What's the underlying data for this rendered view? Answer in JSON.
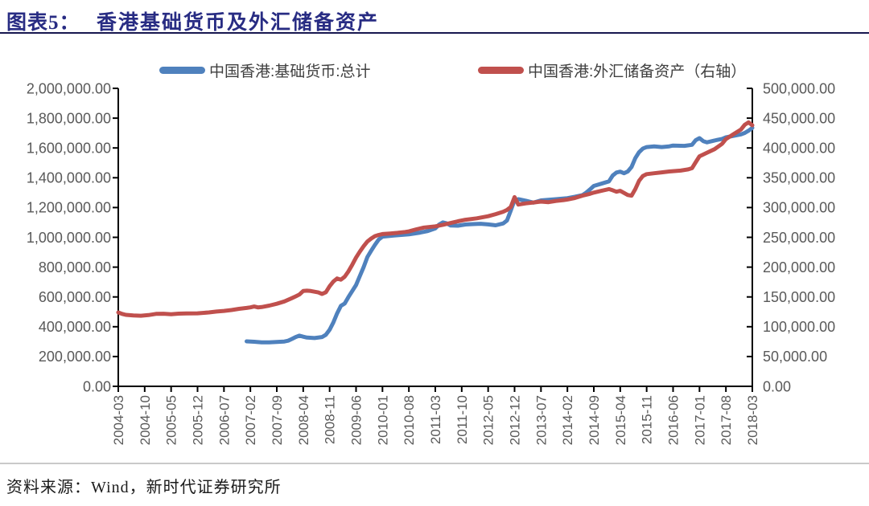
{
  "header": {
    "figure_label": "图表5：",
    "title": "香港基础货币及外汇储备资产"
  },
  "footer": {
    "source": "资料来源：Wind，新时代证券研究所"
  },
  "colors": {
    "title": "#282c83",
    "rule": "#17174f",
    "light_rule": "#c9c9c9",
    "axis": "#000000",
    "tick_label": "#595959",
    "series_blue": "#4F81BD",
    "series_red": "#C0504D"
  },
  "chart_data": {
    "type": "line",
    "title": "图表5： 香港基础货币及外汇储备资产",
    "x_start": "2004-03",
    "x_end": "2018-03",
    "months_total": 168,
    "x_tick_labels": [
      "2004-03",
      "2004-10",
      "2005-05",
      "2005-12",
      "2006-07",
      "2007-02",
      "2007-09",
      "2008-04",
      "2008-11",
      "2009-06",
      "2010-01",
      "2010-08",
      "2011-03",
      "2011-10",
      "2012-05",
      "2012-12",
      "2013-07",
      "2014-02",
      "2014-09",
      "2015-04",
      "2015-11",
      "2016-06",
      "2017-01",
      "2017-08",
      "2018-03"
    ],
    "left_axis": {
      "min": 0,
      "max": 2000000,
      "step": 200000,
      "labels": [
        "2,000,000.00",
        "1,800,000.00",
        "1,600,000.00",
        "1,400,000.00",
        "1,200,000.00",
        "1,000,000.00",
        "800,000.00",
        "600,000.00",
        "400,000.00",
        "200,000.00",
        "0.00"
      ]
    },
    "right_axis": {
      "min": 0,
      "max": 500000,
      "step": 50000,
      "labels": [
        "500,000.00",
        "450,000.00",
        "400,000.00",
        "350,000.00",
        "300,000.00",
        "250,000.00",
        "200,000.00",
        "150,000.00",
        "100,000.00",
        "50,000.00",
        "0.00"
      ]
    },
    "legend_position": "top",
    "grid": false,
    "series": [
      {
        "name": "中国香港:基础货币:总计",
        "axis": "left",
        "color": "#4F81BD",
        "points": [
          [
            34,
            302000
          ],
          [
            36,
            299000
          ],
          [
            38,
            295000
          ],
          [
            40,
            295000
          ],
          [
            42,
            298000
          ],
          [
            44,
            301000
          ],
          [
            45,
            306000
          ],
          [
            46,
            318000
          ],
          [
            47,
            331000
          ],
          [
            48,
            340000
          ],
          [
            49,
            333000
          ],
          [
            50,
            327000
          ],
          [
            52,
            324000
          ],
          [
            54,
            331000
          ],
          [
            55,
            346000
          ],
          [
            56,
            380000
          ],
          [
            57,
            430000
          ],
          [
            58,
            490000
          ],
          [
            59,
            540000
          ],
          [
            60,
            556000
          ],
          [
            61,
            600000
          ],
          [
            62,
            640000
          ],
          [
            63,
            680000
          ],
          [
            64,
            740000
          ],
          [
            65,
            800000
          ],
          [
            66,
            868000
          ],
          [
            67,
            910000
          ],
          [
            68,
            950000
          ],
          [
            69,
            985000
          ],
          [
            70,
            1005000
          ],
          [
            73,
            1012000
          ],
          [
            77,
            1020000
          ],
          [
            80,
            1032000
          ],
          [
            82,
            1042000
          ],
          [
            84,
            1060000
          ],
          [
            85,
            1085000
          ],
          [
            86,
            1100000
          ],
          [
            87,
            1094000
          ],
          [
            88,
            1080000
          ],
          [
            90,
            1078000
          ],
          [
            92,
            1086000
          ],
          [
            94,
            1089000
          ],
          [
            96,
            1091000
          ],
          [
            98,
            1087000
          ],
          [
            100,
            1081000
          ],
          [
            102,
            1093000
          ],
          [
            103,
            1113000
          ],
          [
            104,
            1180000
          ],
          [
            105,
            1250000
          ],
          [
            106,
            1256000
          ],
          [
            108,
            1246000
          ],
          [
            110,
            1233000
          ],
          [
            112,
            1248000
          ],
          [
            114,
            1252000
          ],
          [
            116,
            1256000
          ],
          [
            119,
            1263000
          ],
          [
            121,
            1272000
          ],
          [
            123,
            1283000
          ],
          [
            124,
            1300000
          ],
          [
            125,
            1322000
          ],
          [
            126,
            1345000
          ],
          [
            128,
            1360000
          ],
          [
            130,
            1376000
          ],
          [
            131,
            1415000
          ],
          [
            132,
            1435000
          ],
          [
            133,
            1441000
          ],
          [
            134,
            1430000
          ],
          [
            135,
            1442000
          ],
          [
            136,
            1472000
          ],
          [
            137,
            1532000
          ],
          [
            138,
            1572000
          ],
          [
            139,
            1596000
          ],
          [
            140,
            1606000
          ],
          [
            142,
            1611000
          ],
          [
            144,
            1606000
          ],
          [
            146,
            1611000
          ],
          [
            147,
            1616000
          ],
          [
            150,
            1614000
          ],
          [
            152,
            1621000
          ],
          [
            153,
            1652000
          ],
          [
            154,
            1666000
          ],
          [
            155,
            1646000
          ],
          [
            156,
            1638000
          ],
          [
            158,
            1650000
          ],
          [
            160,
            1661000
          ],
          [
            161,
            1671000
          ],
          [
            163,
            1681000
          ],
          [
            165,
            1691000
          ],
          [
            166,
            1701000
          ],
          [
            167,
            1716000
          ],
          [
            168,
            1735000
          ]
        ]
      },
      {
        "name": "中国香港:外汇储备资产（右轴）",
        "axis": "right",
        "color": "#C0504D",
        "points": [
          [
            0,
            124000
          ],
          [
            1,
            121500
          ],
          [
            2,
            120000
          ],
          [
            4,
            119000
          ],
          [
            6,
            118500
          ],
          [
            8,
            119500
          ],
          [
            10,
            121500
          ],
          [
            12,
            121800
          ],
          [
            14,
            121000
          ],
          [
            16,
            122000
          ],
          [
            18,
            122300
          ],
          [
            21,
            122500
          ],
          [
            24,
            124000
          ],
          [
            26,
            125500
          ],
          [
            28,
            126500
          ],
          [
            30,
            128000
          ],
          [
            32,
            130000
          ],
          [
            34,
            131500
          ],
          [
            35,
            132500
          ],
          [
            36,
            134000
          ],
          [
            37,
            132500
          ],
          [
            38,
            133000
          ],
          [
            40,
            135500
          ],
          [
            42,
            138500
          ],
          [
            44,
            142500
          ],
          [
            46,
            148000
          ],
          [
            47,
            151000
          ],
          [
            48,
            154000
          ],
          [
            49,
            160000
          ],
          [
            50,
            160500
          ],
          [
            51,
            160000
          ],
          [
            53,
            157500
          ],
          [
            54,
            155000
          ],
          [
            55,
            158000
          ],
          [
            56,
            168000
          ],
          [
            57,
            176000
          ],
          [
            58,
            181000
          ],
          [
            59,
            179000
          ],
          [
            60,
            184000
          ],
          [
            61,
            193000
          ],
          [
            62,
            204000
          ],
          [
            63,
            216000
          ],
          [
            64,
            226000
          ],
          [
            65,
            235000
          ],
          [
            66,
            243000
          ],
          [
            67,
            248000
          ],
          [
            68,
            252000
          ],
          [
            69,
            254000
          ],
          [
            70,
            255500
          ],
          [
            72,
            256500
          ],
          [
            74,
            257500
          ],
          [
            76,
            259000
          ],
          [
            77,
            260000
          ],
          [
            79,
            263500
          ],
          [
            81,
            266500
          ],
          [
            84,
            268500
          ],
          [
            86,
            271000
          ],
          [
            88,
            274000
          ],
          [
            90,
            277000
          ],
          [
            92,
            279500
          ],
          [
            95,
            282000
          ],
          [
            98,
            285500
          ],
          [
            100,
            289000
          ],
          [
            102,
            293000
          ],
          [
            103,
            296000
          ],
          [
            104,
            301000
          ],
          [
            105,
            317500
          ],
          [
            106,
            305000
          ],
          [
            108,
            307000
          ],
          [
            110,
            308500
          ],
          [
            112,
            310000
          ],
          [
            114,
            309000
          ],
          [
            116,
            311000
          ],
          [
            118,
            312500
          ],
          [
            119,
            313500
          ],
          [
            121,
            316000
          ],
          [
            123,
            320000
          ],
          [
            125,
            323000
          ],
          [
            126,
            325000
          ],
          [
            128,
            328000
          ],
          [
            130,
            331000
          ],
          [
            131,
            329000
          ],
          [
            132,
            326500
          ],
          [
            133,
            328000
          ],
          [
            134,
            324500
          ],
          [
            135,
            321000
          ],
          [
            136,
            320000
          ],
          [
            137,
            331000
          ],
          [
            138,
            345000
          ],
          [
            139,
            353000
          ],
          [
            140,
            356000
          ],
          [
            142,
            357500
          ],
          [
            144,
            359000
          ],
          [
            146,
            360500
          ],
          [
            147,
            361000
          ],
          [
            149,
            362000
          ],
          [
            151,
            364000
          ],
          [
            152,
            366000
          ],
          [
            153,
            376000
          ],
          [
            154,
            386000
          ],
          [
            156,
            392000
          ],
          [
            158,
            398000
          ],
          [
            160,
            407000
          ],
          [
            161,
            415000
          ],
          [
            163,
            423000
          ],
          [
            165,
            431000
          ],
          [
            166,
            439000
          ],
          [
            167,
            443000
          ],
          [
            168,
            438000
          ]
        ]
      }
    ]
  }
}
